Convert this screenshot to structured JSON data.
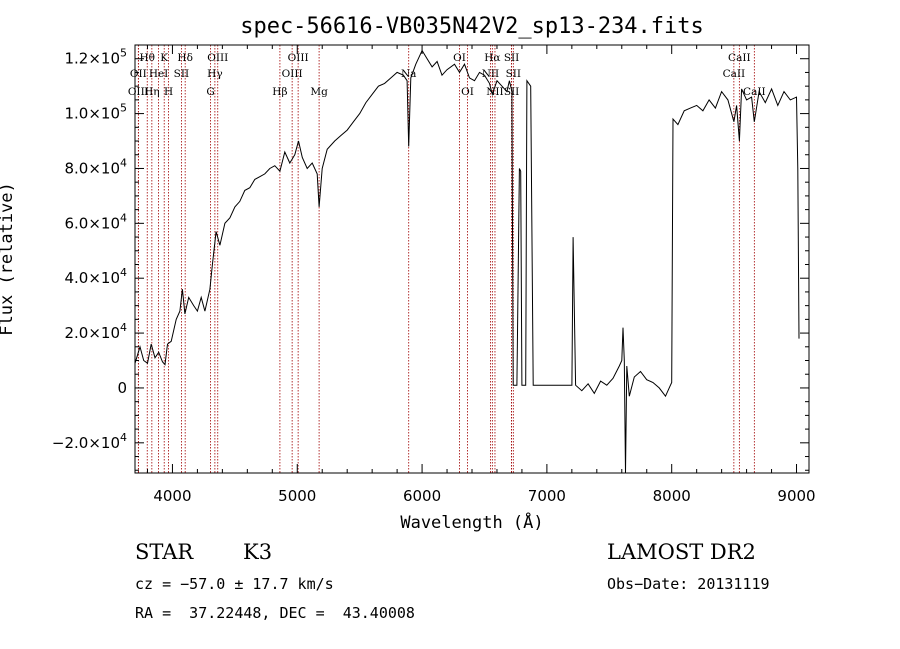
{
  "chart_data": {
    "type": "line",
    "title": "spec-56616-VB035N42V2_sp13-234.fits",
    "xlabel": "Wavelength (Å)",
    "ylabel": "Flux (relative)",
    "xlim": [
      3700,
      9100
    ],
    "ylim": [
      -31000,
      125000
    ],
    "x_ticks": [
      4000,
      5000,
      6000,
      7000,
      8000,
      9000
    ],
    "x_tick_labels": [
      "4000",
      "5000",
      "6000",
      "7000",
      "8000",
      "9000"
    ],
    "y_ticks": [
      -20000,
      0,
      20000,
      40000,
      60000,
      80000,
      100000,
      120000
    ],
    "y_tick_mantissa": [
      "−2.0×10",
      "0",
      "2.0×10",
      "4.0×10",
      "6.0×10",
      "8.0×10",
      "1.0×10",
      "1.2×10"
    ],
    "y_tick_exponent": [
      "4",
      "",
      "4",
      "4",
      "4",
      "4",
      "5",
      "5"
    ],
    "spectral_lines": [
      {
        "label": "Hθ",
        "wavelength": 3798,
        "row": 0
      },
      {
        "label": "OII",
        "wavelength": 3727,
        "row": 1
      },
      {
        "label": "OIII",
        "wavelength": 3727,
        "row": 2
      },
      {
        "label": "K",
        "wavelength": 3934,
        "row": 0
      },
      {
        "label": "HeI",
        "wavelength": 3889,
        "row": 1
      },
      {
        "label": "Hη",
        "wavelength": 3835,
        "row": 2
      },
      {
        "label": "H",
        "wavelength": 3969,
        "row": 2
      },
      {
        "label": "SII",
        "wavelength": 4072,
        "row": 1
      },
      {
        "label": "Hδ",
        "wavelength": 4102,
        "row": 0
      },
      {
        "label": "OIII",
        "wavelength": 4363,
        "row": 0
      },
      {
        "label": "Hγ",
        "wavelength": 4340,
        "row": 1
      },
      {
        "label": "G",
        "wavelength": 4305,
        "row": 2
      },
      {
        "label": "Hβ",
        "wavelength": 4861,
        "row": 2
      },
      {
        "label": "OIII",
        "wavelength": 5007,
        "row": 0
      },
      {
        "label": "OIII",
        "wavelength": 4959,
        "row": 1
      },
      {
        "label": "Mg",
        "wavelength": 5175,
        "row": 2
      },
      {
        "label": "Na",
        "wavelength": 5893,
        "row": 1
      },
      {
        "label": "OI",
        "wavelength": 6300,
        "row": 0
      },
      {
        "label": "OI",
        "wavelength": 6364,
        "row": 2
      },
      {
        "label": "Hα",
        "wavelength": 6563,
        "row": 0
      },
      {
        "label": "SII",
        "wavelength": 6717,
        "row": 0
      },
      {
        "label": "NII",
        "wavelength": 6548,
        "row": 1
      },
      {
        "label": "SII",
        "wavelength": 6731,
        "row": 1
      },
      {
        "label": "NII",
        "wavelength": 6584,
        "row": 2
      },
      {
        "label": "SII",
        "wavelength": 6717,
        "row": 2
      },
      {
        "label": "CaII",
        "wavelength": 8542,
        "row": 0
      },
      {
        "label": "CaII",
        "wavelength": 8498,
        "row": 1
      },
      {
        "label": "CaII",
        "wavelength": 8662,
        "row": 2
      }
    ],
    "spectrum": [
      [
        3700,
        9000
      ],
      [
        3740,
        15000
      ],
      [
        3770,
        10000
      ],
      [
        3800,
        9000
      ],
      [
        3830,
        16000
      ],
      [
        3860,
        11000
      ],
      [
        3890,
        13000
      ],
      [
        3920,
        9500
      ],
      [
        3940,
        8500
      ],
      [
        3960,
        16000
      ],
      [
        3990,
        17000
      ],
      [
        4030,
        25000
      ],
      [
        4060,
        28000
      ],
      [
        4080,
        36000
      ],
      [
        4100,
        27000
      ],
      [
        4130,
        33000
      ],
      [
        4170,
        30000
      ],
      [
        4200,
        28000
      ],
      [
        4230,
        33000
      ],
      [
        4260,
        28000
      ],
      [
        4300,
        36000
      ],
      [
        4320,
        45000
      ],
      [
        4350,
        57000
      ],
      [
        4380,
        52000
      ],
      [
        4420,
        60000
      ],
      [
        4460,
        62000
      ],
      [
        4500,
        66000
      ],
      [
        4540,
        68000
      ],
      [
        4580,
        72000
      ],
      [
        4620,
        73000
      ],
      [
        4660,
        76000
      ],
      [
        4700,
        77000
      ],
      [
        4740,
        78000
      ],
      [
        4780,
        80000
      ],
      [
        4820,
        81000
      ],
      [
        4861,
        79000
      ],
      [
        4900,
        86000
      ],
      [
        4940,
        82000
      ],
      [
        4980,
        85000
      ],
      [
        5010,
        90000
      ],
      [
        5040,
        84000
      ],
      [
        5080,
        80000
      ],
      [
        5120,
        82000
      ],
      [
        5160,
        78000
      ],
      [
        5175,
        66000
      ],
      [
        5200,
        80000
      ],
      [
        5240,
        87000
      ],
      [
        5300,
        90000
      ],
      [
        5350,
        92000
      ],
      [
        5400,
        94000
      ],
      [
        5450,
        97000
      ],
      [
        5500,
        100000
      ],
      [
        5550,
        104000
      ],
      [
        5600,
        107000
      ],
      [
        5650,
        110000
      ],
      [
        5700,
        111000
      ],
      [
        5750,
        113000
      ],
      [
        5800,
        115000
      ],
      [
        5850,
        114000
      ],
      [
        5880,
        112000
      ],
      [
        5893,
        88000
      ],
      [
        5910,
        113000
      ],
      [
        5950,
        118000
      ],
      [
        6000,
        123000
      ],
      [
        6040,
        120000
      ],
      [
        6080,
        117000
      ],
      [
        6120,
        119000
      ],
      [
        6160,
        114000
      ],
      [
        6200,
        116000
      ],
      [
        6260,
        118000
      ],
      [
        6300,
        115000
      ],
      [
        6340,
        118000
      ],
      [
        6380,
        113000
      ],
      [
        6420,
        112000
      ],
      [
        6460,
        115000
      ],
      [
        6500,
        114000
      ],
      [
        6540,
        111000
      ],
      [
        6563,
        107000
      ],
      [
        6600,
        112000
      ],
      [
        6640,
        110000
      ],
      [
        6680,
        108000
      ],
      [
        6700,
        112000
      ],
      [
        6720,
        108000
      ],
      [
        6730,
        1000
      ],
      [
        6760,
        1000
      ],
      [
        6780,
        80000
      ],
      [
        6790,
        79000
      ],
      [
        6800,
        1000
      ],
      [
        6830,
        1000
      ],
      [
        6840,
        112000
      ],
      [
        6870,
        110000
      ],
      [
        6890,
        1000
      ],
      [
        7000,
        1000
      ],
      [
        7100,
        1000
      ],
      [
        7200,
        1000
      ],
      [
        7210,
        55000
      ],
      [
        7230,
        1000
      ],
      [
        7280,
        -1000
      ],
      [
        7330,
        1500
      ],
      [
        7380,
        -2000
      ],
      [
        7430,
        2500
      ],
      [
        7480,
        1000
      ],
      [
        7530,
        3500
      ],
      [
        7580,
        8000
      ],
      [
        7600,
        10000
      ],
      [
        7610,
        22000
      ],
      [
        7620,
        10000
      ],
      [
        7630,
        -31000
      ],
      [
        7640,
        8000
      ],
      [
        7660,
        -3000
      ],
      [
        7700,
        4000
      ],
      [
        7750,
        6000
      ],
      [
        7800,
        3000
      ],
      [
        7850,
        2000
      ],
      [
        7900,
        0
      ],
      [
        7950,
        -3000
      ],
      [
        7980,
        0
      ],
      [
        8000,
        2000
      ],
      [
        8010,
        98000
      ],
      [
        8050,
        96000
      ],
      [
        8100,
        101000
      ],
      [
        8150,
        102000
      ],
      [
        8200,
        103000
      ],
      [
        8250,
        101000
      ],
      [
        8300,
        105000
      ],
      [
        8350,
        102000
      ],
      [
        8400,
        108000
      ],
      [
        8450,
        105000
      ],
      [
        8498,
        97000
      ],
      [
        8520,
        103000
      ],
      [
        8542,
        90000
      ],
      [
        8560,
        109000
      ],
      [
        8600,
        105000
      ],
      [
        8640,
        106000
      ],
      [
        8662,
        97000
      ],
      [
        8700,
        108000
      ],
      [
        8750,
        104000
      ],
      [
        8800,
        109000
      ],
      [
        8850,
        103000
      ],
      [
        8900,
        108000
      ],
      [
        8950,
        105000
      ],
      [
        9000,
        106000
      ],
      [
        9010,
        80000
      ],
      [
        9020,
        18000
      ]
    ]
  },
  "info": {
    "class_label": "STAR",
    "subclass": "K3",
    "survey": "LAMOST DR2",
    "redshift_line": "cz = −57.0 ± 17.7 km/s",
    "obs_date": "Obs−Date: 20131119",
    "coords": "RA =  37.22448, DEC =  43.40008"
  }
}
